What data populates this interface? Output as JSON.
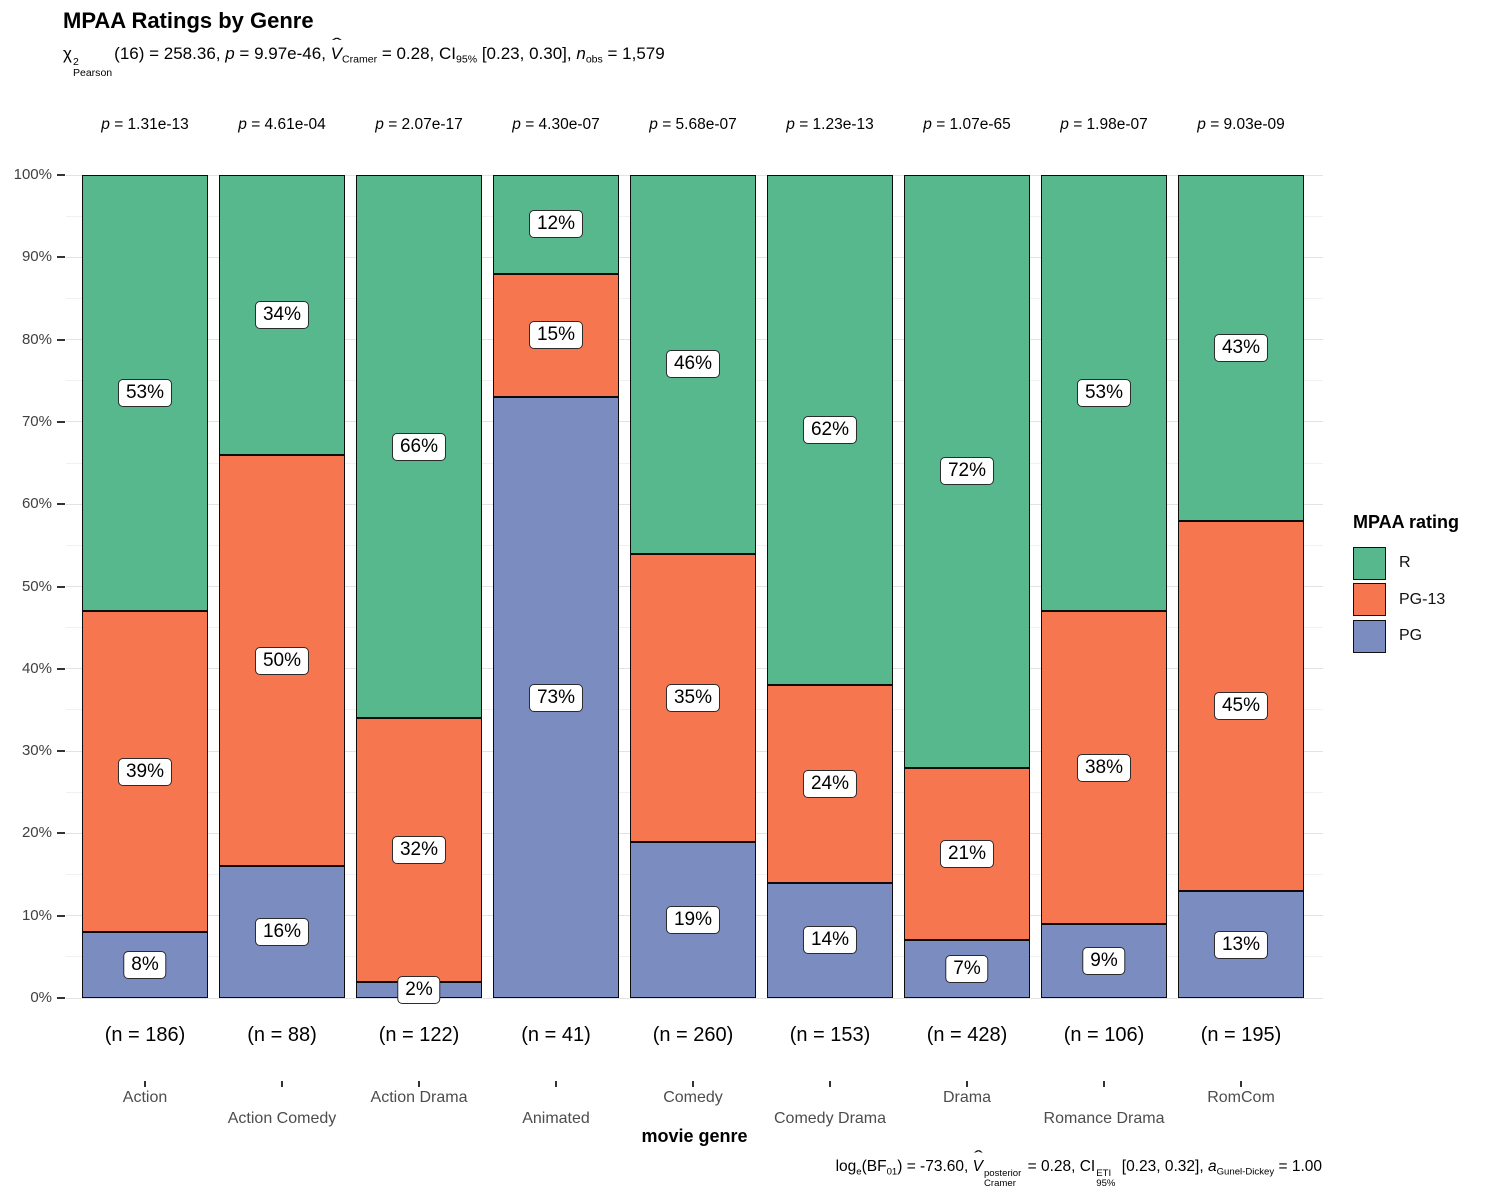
{
  "title": "MPAA Ratings by Genre",
  "subtitle_tokens": [
    {
      "t": "χ",
      "f": "n"
    },
    {
      "over": "2",
      "under": "Pearson"
    },
    {
      "t": "(16) = 258.36, ",
      "f": "n"
    },
    {
      "t": "p",
      "f": "i"
    },
    {
      "t": " = 9.97e-46, ",
      "f": "n"
    },
    {
      "t": "V",
      "f": "i",
      "hat": "ˆ"
    },
    {
      "t": "Cramer",
      "f": "sub"
    },
    {
      "t": " = 0.28, CI",
      "f": "n"
    },
    {
      "t": "95%",
      "f": "sub"
    },
    {
      "t": " [0.23, 0.30], ",
      "f": "n"
    },
    {
      "t": "n",
      "f": "i"
    },
    {
      "t": "obs",
      "f": "sub"
    },
    {
      "t": " = 1,579",
      "f": "n"
    }
  ],
  "caption_tokens": [
    {
      "t": "log",
      "f": "n"
    },
    {
      "t": "e",
      "f": "sub"
    },
    {
      "t": "(BF",
      "f": "n"
    },
    {
      "t": "01",
      "f": "sub"
    },
    {
      "t": ") = -73.60, ",
      "f": "n"
    },
    {
      "t": "V",
      "f": "i",
      "hat": "ˆ"
    },
    {
      "over": "posterior",
      "under": "Cramer"
    },
    {
      "t": " = 0.28, CI",
      "f": "n"
    },
    {
      "over": "ETI",
      "under": "95%"
    },
    {
      "t": " [0.23, 0.32], ",
      "f": "n"
    },
    {
      "t": "a",
      "f": "i"
    },
    {
      "t": "Gunel-Dickey",
      "f": "sub"
    },
    {
      "t": " = 1.00",
      "f": "n"
    }
  ],
  "x_axis_title": "movie genre",
  "legend": {
    "title": "MPAA rating",
    "entries": [
      {
        "label": "R",
        "color": "#57b88e"
      },
      {
        "label": "PG-13",
        "color": "#f6774f"
      },
      {
        "label": "PG",
        "color": "#7b8cc0"
      }
    ]
  },
  "chart_data": {
    "type": "bar",
    "subtype": "stacked-percent",
    "title": "MPAA Ratings by Genre",
    "xlabel": "movie genre",
    "ylabel": "",
    "ylim": [
      0,
      100
    ],
    "grid": "major+minor",
    "legend_position": "right",
    "categories": [
      "Action",
      "Action Comedy",
      "Action Drama",
      "Animated",
      "Comedy",
      "Comedy Drama",
      "Drama",
      "Romance Drama",
      "RomCom"
    ],
    "sample_sizes": [
      "(n = 186)",
      "(n = 88)",
      "(n = 122)",
      "(n = 41)",
      "(n = 260)",
      "(n = 153)",
      "(n = 428)",
      "(n = 106)",
      "(n = 195)"
    ],
    "p_labels": [
      {
        "prefix": "p",
        "rest": " = 1.31e-13"
      },
      {
        "prefix": "p",
        "rest": " = 4.61e-04"
      },
      {
        "prefix": "p",
        "rest": " = 2.07e-17"
      },
      {
        "prefix": "p",
        "rest": " = 4.30e-07"
      },
      {
        "prefix": "p",
        "rest": " = 5.68e-07"
      },
      {
        "prefix": "p",
        "rest": " = 1.23e-13"
      },
      {
        "prefix": "p",
        "rest": " = 1.07e-65"
      },
      {
        "prefix": "p",
        "rest": " = 1.98e-07"
      },
      {
        "prefix": "p",
        "rest": " = 9.03e-09"
      }
    ],
    "series": [
      {
        "name": "PG",
        "color": "#7b8cc0",
        "values": [
          8,
          16,
          2,
          73,
          19,
          14,
          7,
          9,
          13
        ]
      },
      {
        "name": "PG-13",
        "color": "#f6774f",
        "values": [
          39,
          50,
          32,
          15,
          35,
          24,
          21,
          38,
          45
        ]
      },
      {
        "name": "R",
        "color": "#57b88e",
        "values": [
          53,
          34,
          66,
          12,
          46,
          62,
          72,
          53,
          43
        ]
      }
    ],
    "y_ticks": [
      "0%",
      "10%",
      "20%",
      "30%",
      "40%",
      "50%",
      "60%",
      "70%",
      "80%",
      "90%",
      "100%"
    ]
  }
}
